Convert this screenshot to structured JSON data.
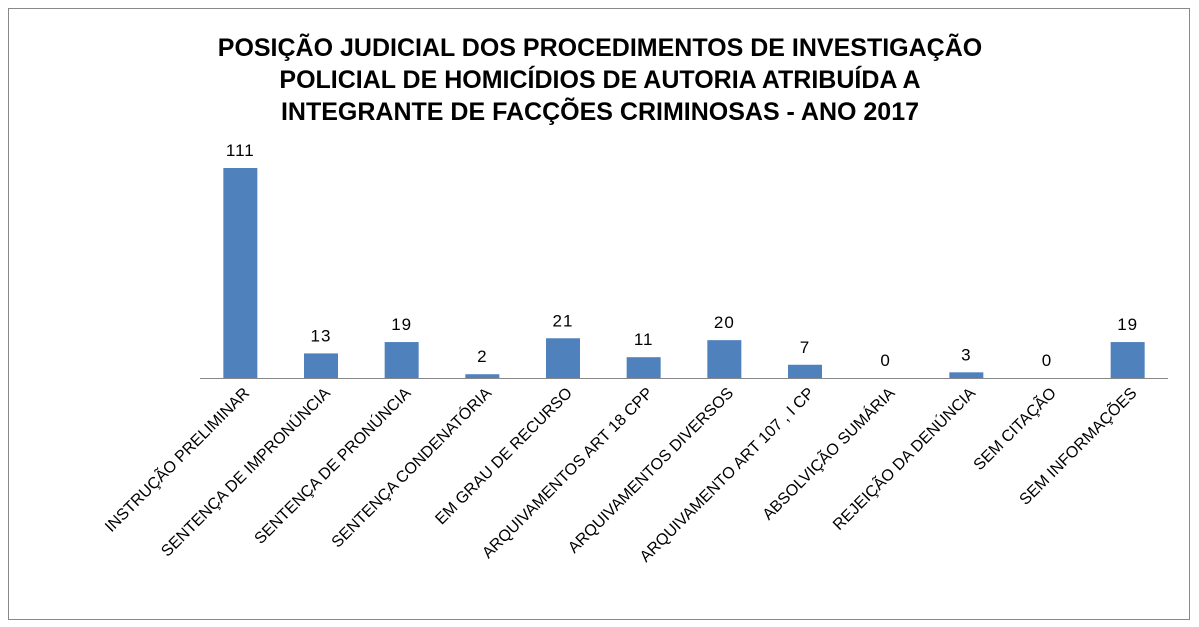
{
  "chart_data": {
    "type": "bar",
    "title": [
      "POSIÇÃO JUDICIAL DOS PROCEDIMENTOS DE INVESTIGAÇÃO",
      "POLICIAL DE HOMICÍDIOS DE AUTORIA ATRIBUÍDA A",
      "INTEGRANTE DE FACÇÕES CRIMINOSAS - ANO 2017"
    ],
    "categories": [
      "INSTRUÇÃO PRELIMINAR",
      "SENTENÇA DE IMPRONÚNCIA",
      "SENTENÇA DE PRONÚNCIA",
      "SENTENÇA CONDENATÓRIA",
      "EM GRAU DE RECURSO",
      "ARQUIVAMENTOS ART 18 CPP",
      "ARQUIVAMENTOS DIVERSOS",
      "ARQUIVAMENTO ART 107 , I CP",
      "ABSOLVIÇÃO SUMÁRIA",
      "REJEIÇÃO DA DENÚNCIA",
      "SEM CITAÇÃO",
      "SEM INFORMAÇÕES"
    ],
    "values": [
      111,
      13,
      19,
      2,
      21,
      11,
      20,
      7,
      0,
      3,
      0,
      19
    ],
    "color": "#4f81bd"
  }
}
